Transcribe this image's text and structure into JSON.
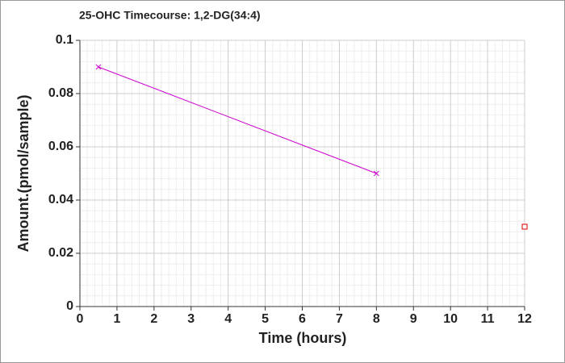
{
  "chart_data": {
    "type": "line",
    "title": "25-OHC Timecourse: 1,2-DG(34:4)",
    "x_label": "Time (hours)",
    "y_label": "Amount.(pmol/sample)",
    "series": [
      {
        "color": "#cc00cc",
        "marker": "x",
        "line": true,
        "x": [
          0.5,
          8
        ],
        "values": [
          0.09,
          0.05
        ]
      },
      {
        "color": "#dd0000",
        "marker": "square",
        "line": false,
        "x": [
          12
        ],
        "values": [
          0.03
        ]
      }
    ],
    "xlim": [
      0,
      12
    ],
    "xticks": [
      0,
      1,
      2,
      3,
      4,
      5,
      6,
      7,
      8,
      9,
      10,
      11,
      12
    ],
    "ylim": [
      0,
      0.1
    ],
    "yticks": [
      0,
      0.02,
      0.04,
      0.06,
      0.08,
      0.1
    ],
    "grid": true,
    "minor_grid_divisions": 5
  }
}
